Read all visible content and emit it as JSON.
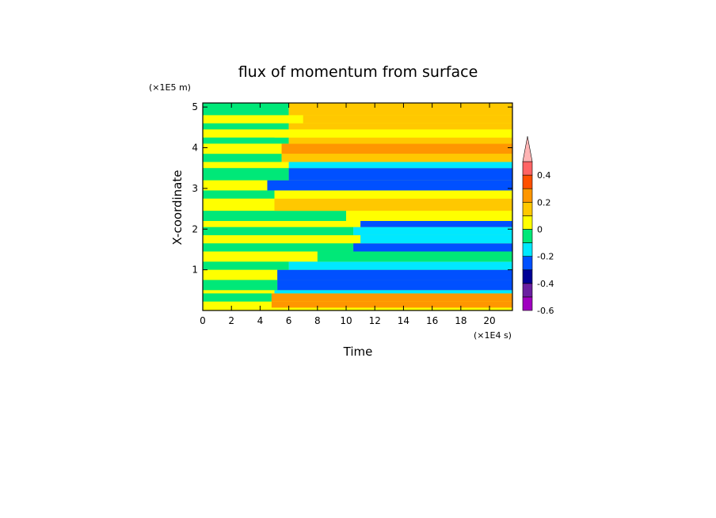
{
  "chart_data": {
    "type": "heatmap",
    "title": "flux of momentum from surface",
    "xlabel": "Time",
    "ylabel": "X-coordinate",
    "x_unit_label": "(×1E4 s)",
    "y_unit_label": "(×1E5 m)",
    "xlim": [
      0,
      21.6
    ],
    "ylim": [
      0,
      5.1
    ],
    "x_ticks": [
      0,
      2,
      4,
      6,
      8,
      10,
      12,
      14,
      16,
      18,
      20
    ],
    "y_ticks": [
      1,
      2,
      3,
      4,
      5
    ],
    "colorbar": {
      "levels": [
        -0.6,
        -0.5,
        -0.4,
        -0.3,
        -0.2,
        -0.1,
        0,
        0.1,
        0.2,
        0.3,
        0.4,
        0.5
      ],
      "colors": [
        "#a000c0",
        "#6a1fa0",
        "#000096",
        "#0050ff",
        "#00e8ff",
        "#00e878",
        "#ffff00",
        "#ffc800",
        "#ff9600",
        "#ff5000",
        "#ff6464"
      ],
      "over_color": "#ffb4b4",
      "tick_labels": [
        "-0.6",
        "-0.4",
        "-0.2",
        "0",
        "0.2",
        "0.4"
      ],
      "tick_values": [
        -0.6,
        -0.4,
        -0.2,
        0,
        0.2,
        0.4
      ],
      "extend": "max"
    },
    "bands": [
      {
        "y0": 0.0,
        "y1": 0.07,
        "t": 0.0,
        "value": 0.05
      },
      {
        "y0": 0.07,
        "y1": 0.22,
        "t": 4.8,
        "value": 0.25
      },
      {
        "y0": 0.22,
        "y1": 0.42,
        "t": 4.8,
        "value": 0.22
      },
      {
        "y0": 0.42,
        "y1": 0.5,
        "t": 5.0,
        "value": -0.15
      },
      {
        "y0": 0.5,
        "y1": 0.75,
        "t": 5.2,
        "value": -0.3
      },
      {
        "y0": 0.75,
        "y1": 1.0,
        "t": 5.2,
        "value": -0.25
      },
      {
        "y0": 1.0,
        "y1": 1.2,
        "t": 6.0,
        "value": -0.12
      },
      {
        "y0": 1.2,
        "y1": 1.45,
        "t": 8.0,
        "value": -0.05
      },
      {
        "y0": 1.45,
        "y1": 1.65,
        "t": 10.5,
        "value": -0.28
      },
      {
        "y0": 1.65,
        "y1": 1.85,
        "t": 11.0,
        "value": -0.12
      },
      {
        "y0": 1.85,
        "y1": 2.05,
        "t": 10.5,
        "value": -0.15
      },
      {
        "y0": 2.05,
        "y1": 2.2,
        "t": 11.0,
        "value": -0.25
      },
      {
        "y0": 2.2,
        "y1": 2.45,
        "t": 10.0,
        "value": 0.08
      },
      {
        "y0": 2.45,
        "y1": 2.75,
        "t": 5.0,
        "value": 0.15
      },
      {
        "y0": 2.75,
        "y1": 2.95,
        "t": 5.0,
        "value": 0.05
      },
      {
        "y0": 2.95,
        "y1": 3.2,
        "t": 4.5,
        "value": -0.3
      },
      {
        "y0": 3.2,
        "y1": 3.5,
        "t": 6.0,
        "value": -0.25
      },
      {
        "y0": 3.5,
        "y1": 3.65,
        "t": 6.0,
        "value": -0.12
      },
      {
        "y0": 3.65,
        "y1": 3.85,
        "t": 5.5,
        "value": 0.12
      },
      {
        "y0": 3.85,
        "y1": 4.1,
        "t": 5.5,
        "value": 0.22
      },
      {
        "y0": 4.1,
        "y1": 4.25,
        "t": 6.0,
        "value": 0.15
      },
      {
        "y0": 4.25,
        "y1": 4.45,
        "t": 5.0,
        "value": 0.08
      },
      {
        "y0": 4.45,
        "y1": 4.6,
        "t": 6.0,
        "value": 0.1
      },
      {
        "y0": 4.6,
        "y1": 4.8,
        "t": 7.0,
        "value": 0.15
      },
      {
        "y0": 4.8,
        "y1": 5.1,
        "t": 6.0,
        "value": 0.12
      }
    ]
  }
}
